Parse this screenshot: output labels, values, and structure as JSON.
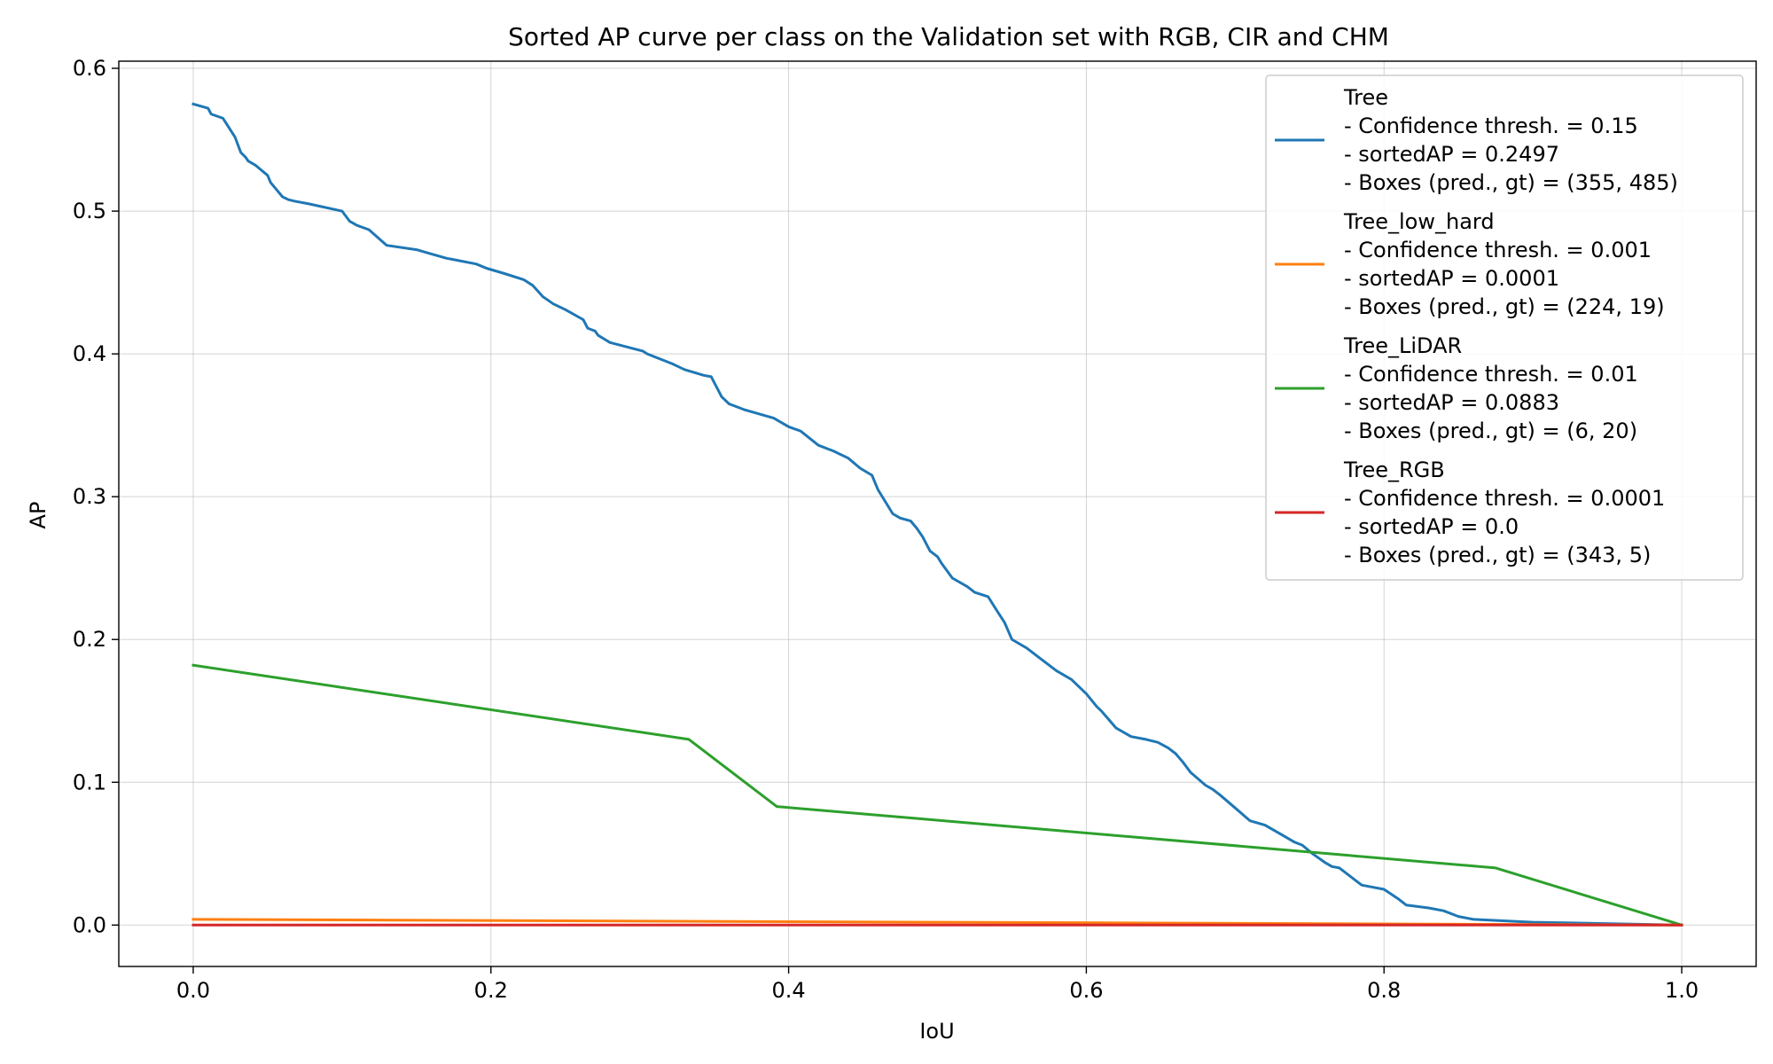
{
  "chart_data": {
    "type": "line",
    "title": "Sorted AP curve per class on the Validation set with RGB, CIR and CHM",
    "xlabel": "IoU",
    "ylabel": "AP",
    "xlim": [
      -0.05,
      1.05
    ],
    "ylim": [
      -0.029,
      0.605
    ],
    "xticks": [
      0.0,
      0.2,
      0.4,
      0.6,
      0.8,
      1.0
    ],
    "xtick_labels": [
      "0.0",
      "0.2",
      "0.4",
      "0.6",
      "0.8",
      "1.0"
    ],
    "yticks": [
      0.0,
      0.1,
      0.2,
      0.3,
      0.4,
      0.5,
      0.6
    ],
    "ytick_labels": [
      "0.0",
      "0.1",
      "0.2",
      "0.3",
      "0.4",
      "0.5",
      "0.6"
    ],
    "grid": true,
    "legend_position": "top-right",
    "series": [
      {
        "name": "Tree",
        "legend_lines": [
          "Tree",
          "- Confidence thresh. = 0.15",
          "- sortedAP = 0.2497",
          "- Boxes (pred., gt) = (355, 485)"
        ],
        "color": "#1f77b4",
        "x": [
          0.0,
          0.01,
          0.012,
          0.02,
          0.028,
          0.032,
          0.035,
          0.037,
          0.042,
          0.05,
          0.052,
          0.06,
          0.064,
          0.068,
          0.078,
          0.1,
          0.105,
          0.11,
          0.118,
          0.13,
          0.15,
          0.16,
          0.17,
          0.19,
          0.197,
          0.21,
          0.222,
          0.228,
          0.235,
          0.242,
          0.25,
          0.262,
          0.265,
          0.27,
          0.272,
          0.28,
          0.302,
          0.305,
          0.322,
          0.33,
          0.343,
          0.348,
          0.352,
          0.355,
          0.36,
          0.37,
          0.39,
          0.395,
          0.4,
          0.408,
          0.42,
          0.43,
          0.44,
          0.448,
          0.456,
          0.46,
          0.47,
          0.475,
          0.482,
          0.486,
          0.49,
          0.495,
          0.5,
          0.503,
          0.51,
          0.52,
          0.525,
          0.534,
          0.54,
          0.545,
          0.55,
          0.56,
          0.57,
          0.58,
          0.59,
          0.6,
          0.607,
          0.61,
          0.615,
          0.62,
          0.63,
          0.64,
          0.648,
          0.655,
          0.66,
          0.665,
          0.67,
          0.68,
          0.685,
          0.69,
          0.7,
          0.71,
          0.72,
          0.73,
          0.74,
          0.745,
          0.752,
          0.76,
          0.765,
          0.77,
          0.78,
          0.785,
          0.79,
          0.8,
          0.81,
          0.815,
          0.83,
          0.84,
          0.85,
          0.86,
          0.88,
          0.9,
          1.0
        ],
        "y": [
          0.575,
          0.572,
          0.568,
          0.565,
          0.552,
          0.541,
          0.538,
          0.535,
          0.532,
          0.525,
          0.52,
          0.51,
          0.508,
          0.507,
          0.505,
          0.5,
          0.493,
          0.49,
          0.487,
          0.476,
          0.473,
          0.47,
          0.467,
          0.463,
          0.46,
          0.456,
          0.452,
          0.448,
          0.44,
          0.435,
          0.431,
          0.424,
          0.418,
          0.416,
          0.413,
          0.408,
          0.402,
          0.4,
          0.393,
          0.389,
          0.385,
          0.384,
          0.376,
          0.37,
          0.365,
          0.361,
          0.355,
          0.352,
          0.349,
          0.346,
          0.336,
          0.332,
          0.327,
          0.32,
          0.315,
          0.305,
          0.288,
          0.285,
          0.283,
          0.278,
          0.272,
          0.262,
          0.258,
          0.253,
          0.243,
          0.237,
          0.233,
          0.23,
          0.22,
          0.212,
          0.2,
          0.194,
          0.186,
          0.178,
          0.172,
          0.162,
          0.153,
          0.15,
          0.144,
          0.138,
          0.132,
          0.13,
          0.128,
          0.124,
          0.12,
          0.114,
          0.107,
          0.098,
          0.095,
          0.091,
          0.082,
          0.073,
          0.07,
          0.064,
          0.058,
          0.056,
          0.05,
          0.044,
          0.041,
          0.04,
          0.032,
          0.028,
          0.027,
          0.025,
          0.018,
          0.014,
          0.012,
          0.01,
          0.006,
          0.004,
          0.003,
          0.002,
          0.0
        ]
      },
      {
        "name": "Tree_low_hard",
        "legend_lines": [
          "Tree_low_hard",
          "- Confidence thresh. = 0.001",
          "- sortedAP = 0.0001",
          "- Boxes (pred., gt) = (224, 19)"
        ],
        "color": "#ff7f0e",
        "x": [
          0.0,
          1.0
        ],
        "y": [
          0.004,
          0.0
        ]
      },
      {
        "name": "Tree_LiDAR",
        "legend_lines": [
          "Tree_LiDAR",
          "- Confidence thresh. = 0.01",
          "- sortedAP = 0.0883",
          "- Boxes (pred., gt) = (6, 20)"
        ],
        "color": "#2ca02c",
        "x": [
          0.0,
          0.333,
          0.392,
          0.875,
          1.0
        ],
        "y": [
          0.182,
          0.13,
          0.083,
          0.04,
          0.0
        ]
      },
      {
        "name": "Tree_RGB",
        "legend_lines": [
          "Tree_RGB",
          "- Confidence thresh. = 0.0001",
          "- sortedAP = 0.0",
          "- Boxes (pred., gt) = (343, 5)"
        ],
        "color": "#d62728",
        "x": [
          0.0,
          1.0
        ],
        "y": [
          0.0,
          0.0
        ]
      }
    ]
  }
}
